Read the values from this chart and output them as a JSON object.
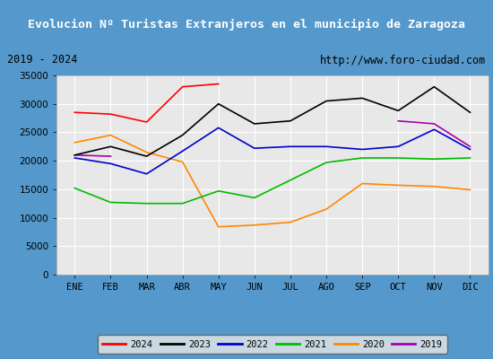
{
  "title": "Evolucion Nº Turistas Extranjeros en el municipio de Zaragoza",
  "subtitle_left": "2019 - 2024",
  "subtitle_right": "http://www.foro-ciudad.com",
  "months": [
    "ENE",
    "FEB",
    "MAR",
    "ABR",
    "MAY",
    "JUN",
    "JUL",
    "AGO",
    "SEP",
    "OCT",
    "NOV",
    "DIC"
  ],
  "s2024": [
    28500,
    28200,
    26800,
    33000,
    33500,
    null,
    null,
    null,
    null,
    null,
    null,
    null
  ],
  "s2023": [
    21000,
    22500,
    20800,
    24500,
    30000,
    26500,
    27000,
    30500,
    31000,
    28800,
    33000,
    28500
  ],
  "s2022": [
    20500,
    19500,
    17700,
    21700,
    25800,
    22200,
    22500,
    22500,
    22000,
    22500,
    25500,
    22000
  ],
  "s2021": [
    15200,
    12700,
    12500,
    12500,
    14700,
    13500,
    16600,
    19700,
    20500,
    20500,
    20300,
    20500
  ],
  "s2020": [
    23200,
    24500,
    21500,
    19800,
    8400,
    8700,
    9200,
    11500,
    16000,
    15700,
    15500,
    14900
  ],
  "s2019_x": [
    0,
    1,
    9,
    10,
    11
  ],
  "s2019_y": [
    21000,
    20800,
    27000,
    26500,
    22500
  ],
  "color_2024": "#ff0000",
  "color_2023": "#000000",
  "color_2022": "#0000cc",
  "color_2021": "#00bb00",
  "color_2020": "#ff8800",
  "color_2019": "#aa00aa",
  "ylim": [
    0,
    35000
  ],
  "yticks": [
    0,
    5000,
    10000,
    15000,
    20000,
    25000,
    30000,
    35000
  ],
  "title_bg": "#4da6e0",
  "title_color": "#ffffff",
  "subtitle_bg": "#f0f0f0",
  "outer_bg": "#5599cc",
  "plot_bg": "#e8e8e8",
  "grid_color": "#ffffff",
  "legend_bg": "#e8e8e8"
}
